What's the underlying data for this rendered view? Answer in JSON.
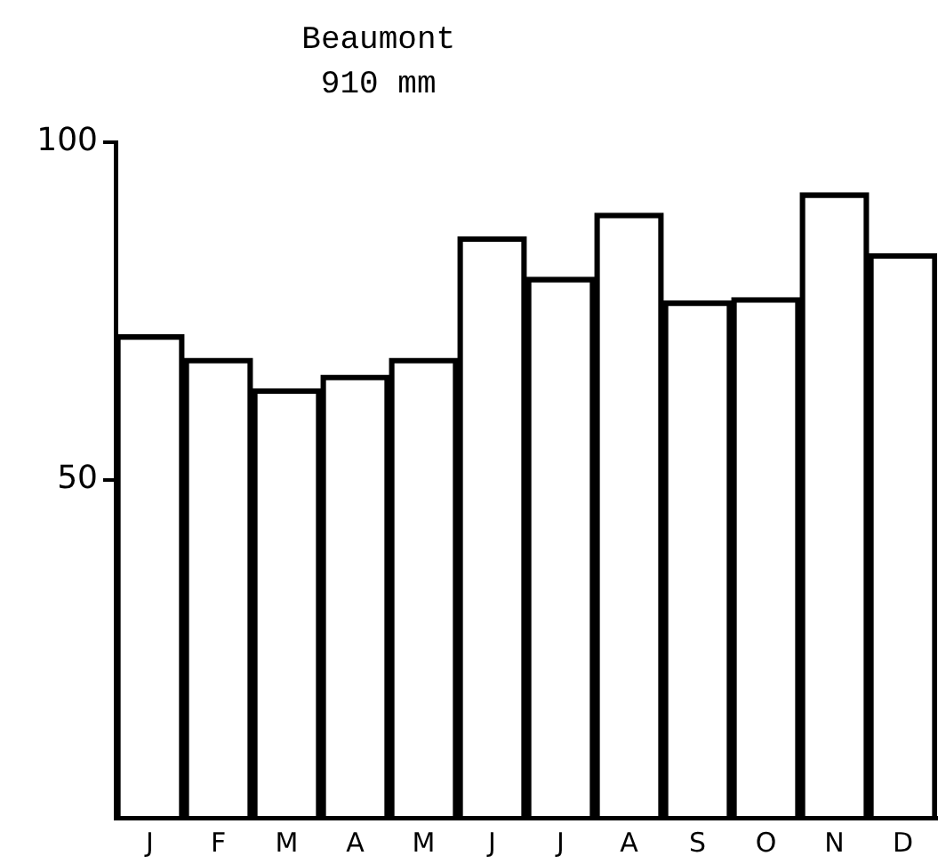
{
  "chart_data": {
    "type": "bar",
    "title": "Beaumont",
    "subtitle": "910 mm",
    "categories": [
      "J",
      "F",
      "M",
      "A",
      "M",
      "J",
      "J",
      "A",
      "S",
      "O",
      "N",
      "D"
    ],
    "values": [
      71.5,
      68,
      63.5,
      65.5,
      68,
      86,
      80,
      89.5,
      76.5,
      77,
      92.5,
      83.5
    ],
    "color": "#000000",
    "ylim": [
      0,
      100
    ],
    "yticks": [
      50,
      100
    ],
    "grid": false,
    "legend": false
  }
}
